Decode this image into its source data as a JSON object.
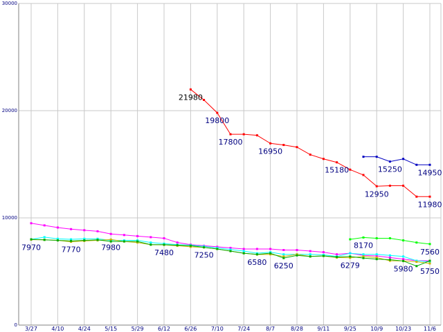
{
  "chart_data": {
    "type": "line",
    "title": "",
    "xlabel": "",
    "ylabel": "",
    "ylim": [
      0,
      30000
    ],
    "grid": true,
    "y_ticks": [
      "0",
      "10000",
      "20000",
      "30000"
    ],
    "categories": [
      "3/27",
      "4/3",
      "4/10",
      "4/17",
      "4/24",
      "5/1",
      "5/15",
      "5/22",
      "5/29",
      "6/5",
      "6/12",
      "6/19",
      "6/26",
      "7/3",
      "7/10",
      "7/17",
      "7/24",
      "7/31",
      "8/7",
      "8/14",
      "8/28",
      "9/4",
      "9/11",
      "9/18",
      "9/25",
      "10/2",
      "10/9",
      "10/16",
      "10/23",
      "10/30",
      "11/6"
    ],
    "x_tick_labels": [
      "3/27",
      "4/10",
      "4/24",
      "5/15",
      "5/29",
      "6/12",
      "6/26",
      "7/10",
      "7/24",
      "8/7",
      "8/28",
      "9/11",
      "9/25",
      "10/9",
      "10/23",
      "11/6"
    ],
    "series": [
      {
        "color": "#ff00ff",
        "values": [
          9500,
          9300,
          9100,
          8950,
          8850,
          8750,
          8500,
          8400,
          8300,
          8200,
          8100,
          7700,
          7500,
          7400,
          7300,
          7200,
          7100,
          7100,
          7100,
          7000,
          7000,
          6900,
          6800,
          6600,
          6700,
          6500,
          6450,
          6300,
          6150,
          6000,
          6000
        ]
      },
      {
        "color": "#00ffff",
        "values": [
          8000,
          8200,
          8050,
          8000,
          8050,
          8050,
          7900,
          7900,
          7900,
          7700,
          7600,
          7500,
          7450,
          7350,
          7200,
          7050,
          6900,
          6700,
          6800,
          6600,
          6600,
          6600,
          6550,
          6400,
          6700,
          6600,
          6600,
          6500,
          6400,
          6000,
          5900
        ]
      },
      {
        "color": "#c8b400",
        "values": [
          7970,
          7950,
          7900,
          7770,
          7850,
          7900,
          7980,
          7800,
          7700,
          7500,
          7480,
          7400,
          7300,
          7250,
          7100,
          6900,
          6700,
          6580,
          6600,
          6400,
          6600,
          6400,
          6450,
          6300,
          6279,
          6400,
          6300,
          6000,
          5980,
          5900,
          5750
        ]
      },
      {
        "color": "#00aa00",
        "values": [
          8000,
          7950,
          7900,
          7850,
          7900,
          7950,
          7800,
          7800,
          7800,
          7500,
          7500,
          7450,
          7400,
          7250,
          7100,
          6900,
          6700,
          6600,
          6700,
          6250,
          6500,
          6400,
          6450,
          6350,
          6400,
          6250,
          6150,
          6100,
          5980,
          5500,
          6000
        ]
      },
      {
        "color": "#ff0000",
        "values": [
          null,
          null,
          null,
          null,
          null,
          null,
          null,
          null,
          null,
          null,
          null,
          null,
          21980,
          21000,
          19800,
          17800,
          17800,
          17700,
          16950,
          16800,
          16600,
          15900,
          15500,
          15180,
          14500,
          14000,
          12950,
          13000,
          13000,
          11980,
          11980
        ]
      },
      {
        "color": "#00ff00",
        "values": [
          null,
          null,
          null,
          null,
          null,
          null,
          null,
          null,
          null,
          null,
          null,
          null,
          null,
          null,
          null,
          null,
          null,
          null,
          null,
          null,
          null,
          null,
          null,
          null,
          8000,
          8170,
          8100,
          8100,
          7900,
          7700,
          7560
        ]
      },
      {
        "color": "#0000c0",
        "values": [
          null,
          null,
          null,
          null,
          null,
          null,
          null,
          null,
          null,
          null,
          null,
          null,
          null,
          null,
          null,
          null,
          null,
          null,
          null,
          null,
          null,
          null,
          null,
          null,
          null,
          15700,
          15700,
          15250,
          15500,
          14950,
          14950
        ]
      }
    ],
    "annotations": [
      {
        "text": "21980",
        "x": "6/26",
        "y": 21980,
        "dark": true
      },
      {
        "text": "19800",
        "x": "7/10",
        "y": 19800,
        "dark": false
      },
      {
        "text": "17800",
        "x": "7/17",
        "y": 17800,
        "dark": false
      },
      {
        "text": "16950",
        "x": "8/7",
        "y": 16950,
        "dark": false
      },
      {
        "text": "15180",
        "x": "9/18",
        "y": 15180,
        "dark": false
      },
      {
        "text": "12950",
        "x": "10/9",
        "y": 12950,
        "dark": false
      },
      {
        "text": "11980",
        "x": "11/6",
        "y": 11980,
        "dark": false
      },
      {
        "text": "15250",
        "x": "10/16",
        "y": 15250,
        "dark": false
      },
      {
        "text": "14950",
        "x": "11/6",
        "y": 14950,
        "dark": false
      },
      {
        "text": "8170",
        "x": "10/2",
        "y": 8170,
        "dark": false
      },
      {
        "text": "7560",
        "x": "11/6",
        "y": 7560,
        "dark": false
      },
      {
        "text": "7970",
        "x": "3/27",
        "y": 7970,
        "dark": false
      },
      {
        "text": "7770",
        "x": "4/17",
        "y": 7770,
        "dark": false
      },
      {
        "text": "7980",
        "x": "5/15",
        "y": 7980,
        "dark": false
      },
      {
        "text": "7480",
        "x": "6/12",
        "y": 7480,
        "dark": false
      },
      {
        "text": "7250",
        "x": "7/3",
        "y": 7250,
        "dark": false
      },
      {
        "text": "6580",
        "x": "7/31",
        "y": 6580,
        "dark": false
      },
      {
        "text": "6250",
        "x": "8/14",
        "y": 6250,
        "dark": false
      },
      {
        "text": "6279",
        "x": "9/25",
        "y": 6279,
        "dark": false
      },
      {
        "text": "5980",
        "x": "10/23",
        "y": 5980,
        "dark": false
      },
      {
        "text": "5750",
        "x": "11/6",
        "y": 5750,
        "dark": false
      }
    ]
  }
}
